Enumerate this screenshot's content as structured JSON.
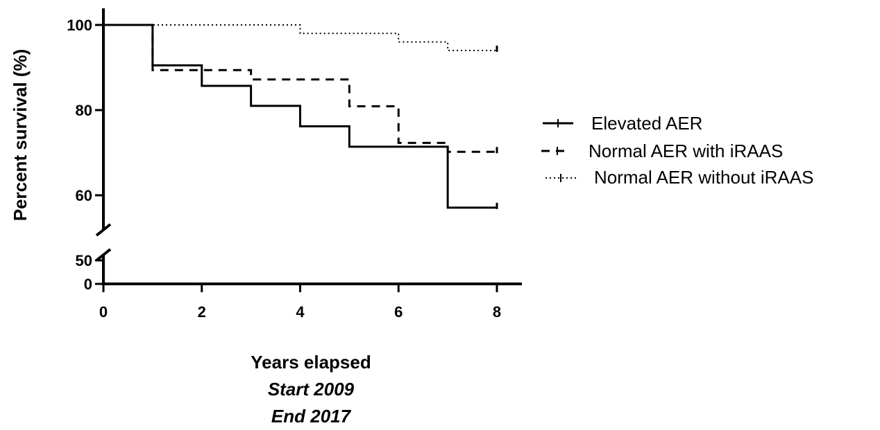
{
  "chart_data": {
    "type": "line",
    "subtype": "kaplan-meier-step",
    "xlabel": "Years elapsed",
    "xlabel_lines": [
      "Start 2009",
      "End 2017"
    ],
    "ylabel": "Percent survival (%)",
    "xlim": [
      0,
      8
    ],
    "ylim": [
      0,
      100
    ],
    "y_axis_break": [
      50,
      55
    ],
    "x_ticks": [
      0,
      2,
      4,
      6,
      8
    ],
    "y_ticks_upper": [
      60,
      80,
      100
    ],
    "y_ticks_lower": [
      0,
      50
    ],
    "grid": false,
    "legend_position": "right",
    "series": [
      {
        "name": "Elevated AER",
        "style": "solid",
        "color": "#000000",
        "steps": [
          [
            0,
            100
          ],
          [
            1,
            90.5
          ],
          [
            2,
            85.7
          ],
          [
            3,
            81.0
          ],
          [
            4,
            76.2
          ],
          [
            5,
            71.4
          ],
          [
            7,
            57.1
          ],
          [
            8,
            57.1
          ]
        ]
      },
      {
        "name": "Normal AER with iRAAS",
        "style": "dashed",
        "color": "#000000",
        "steps": [
          [
            0,
            100
          ],
          [
            1,
            89.4
          ],
          [
            3,
            87.2
          ],
          [
            5,
            80.9
          ],
          [
            6,
            72.3
          ],
          [
            7,
            70.2
          ],
          [
            8,
            70.2
          ]
        ]
      },
      {
        "name": "Normal AER without iRAAS",
        "style": "dotted",
        "color": "#000000",
        "steps": [
          [
            0,
            100
          ],
          [
            4,
            98.0
          ],
          [
            6,
            96.0
          ],
          [
            7,
            94.0
          ],
          [
            8,
            94.0
          ]
        ]
      }
    ]
  }
}
